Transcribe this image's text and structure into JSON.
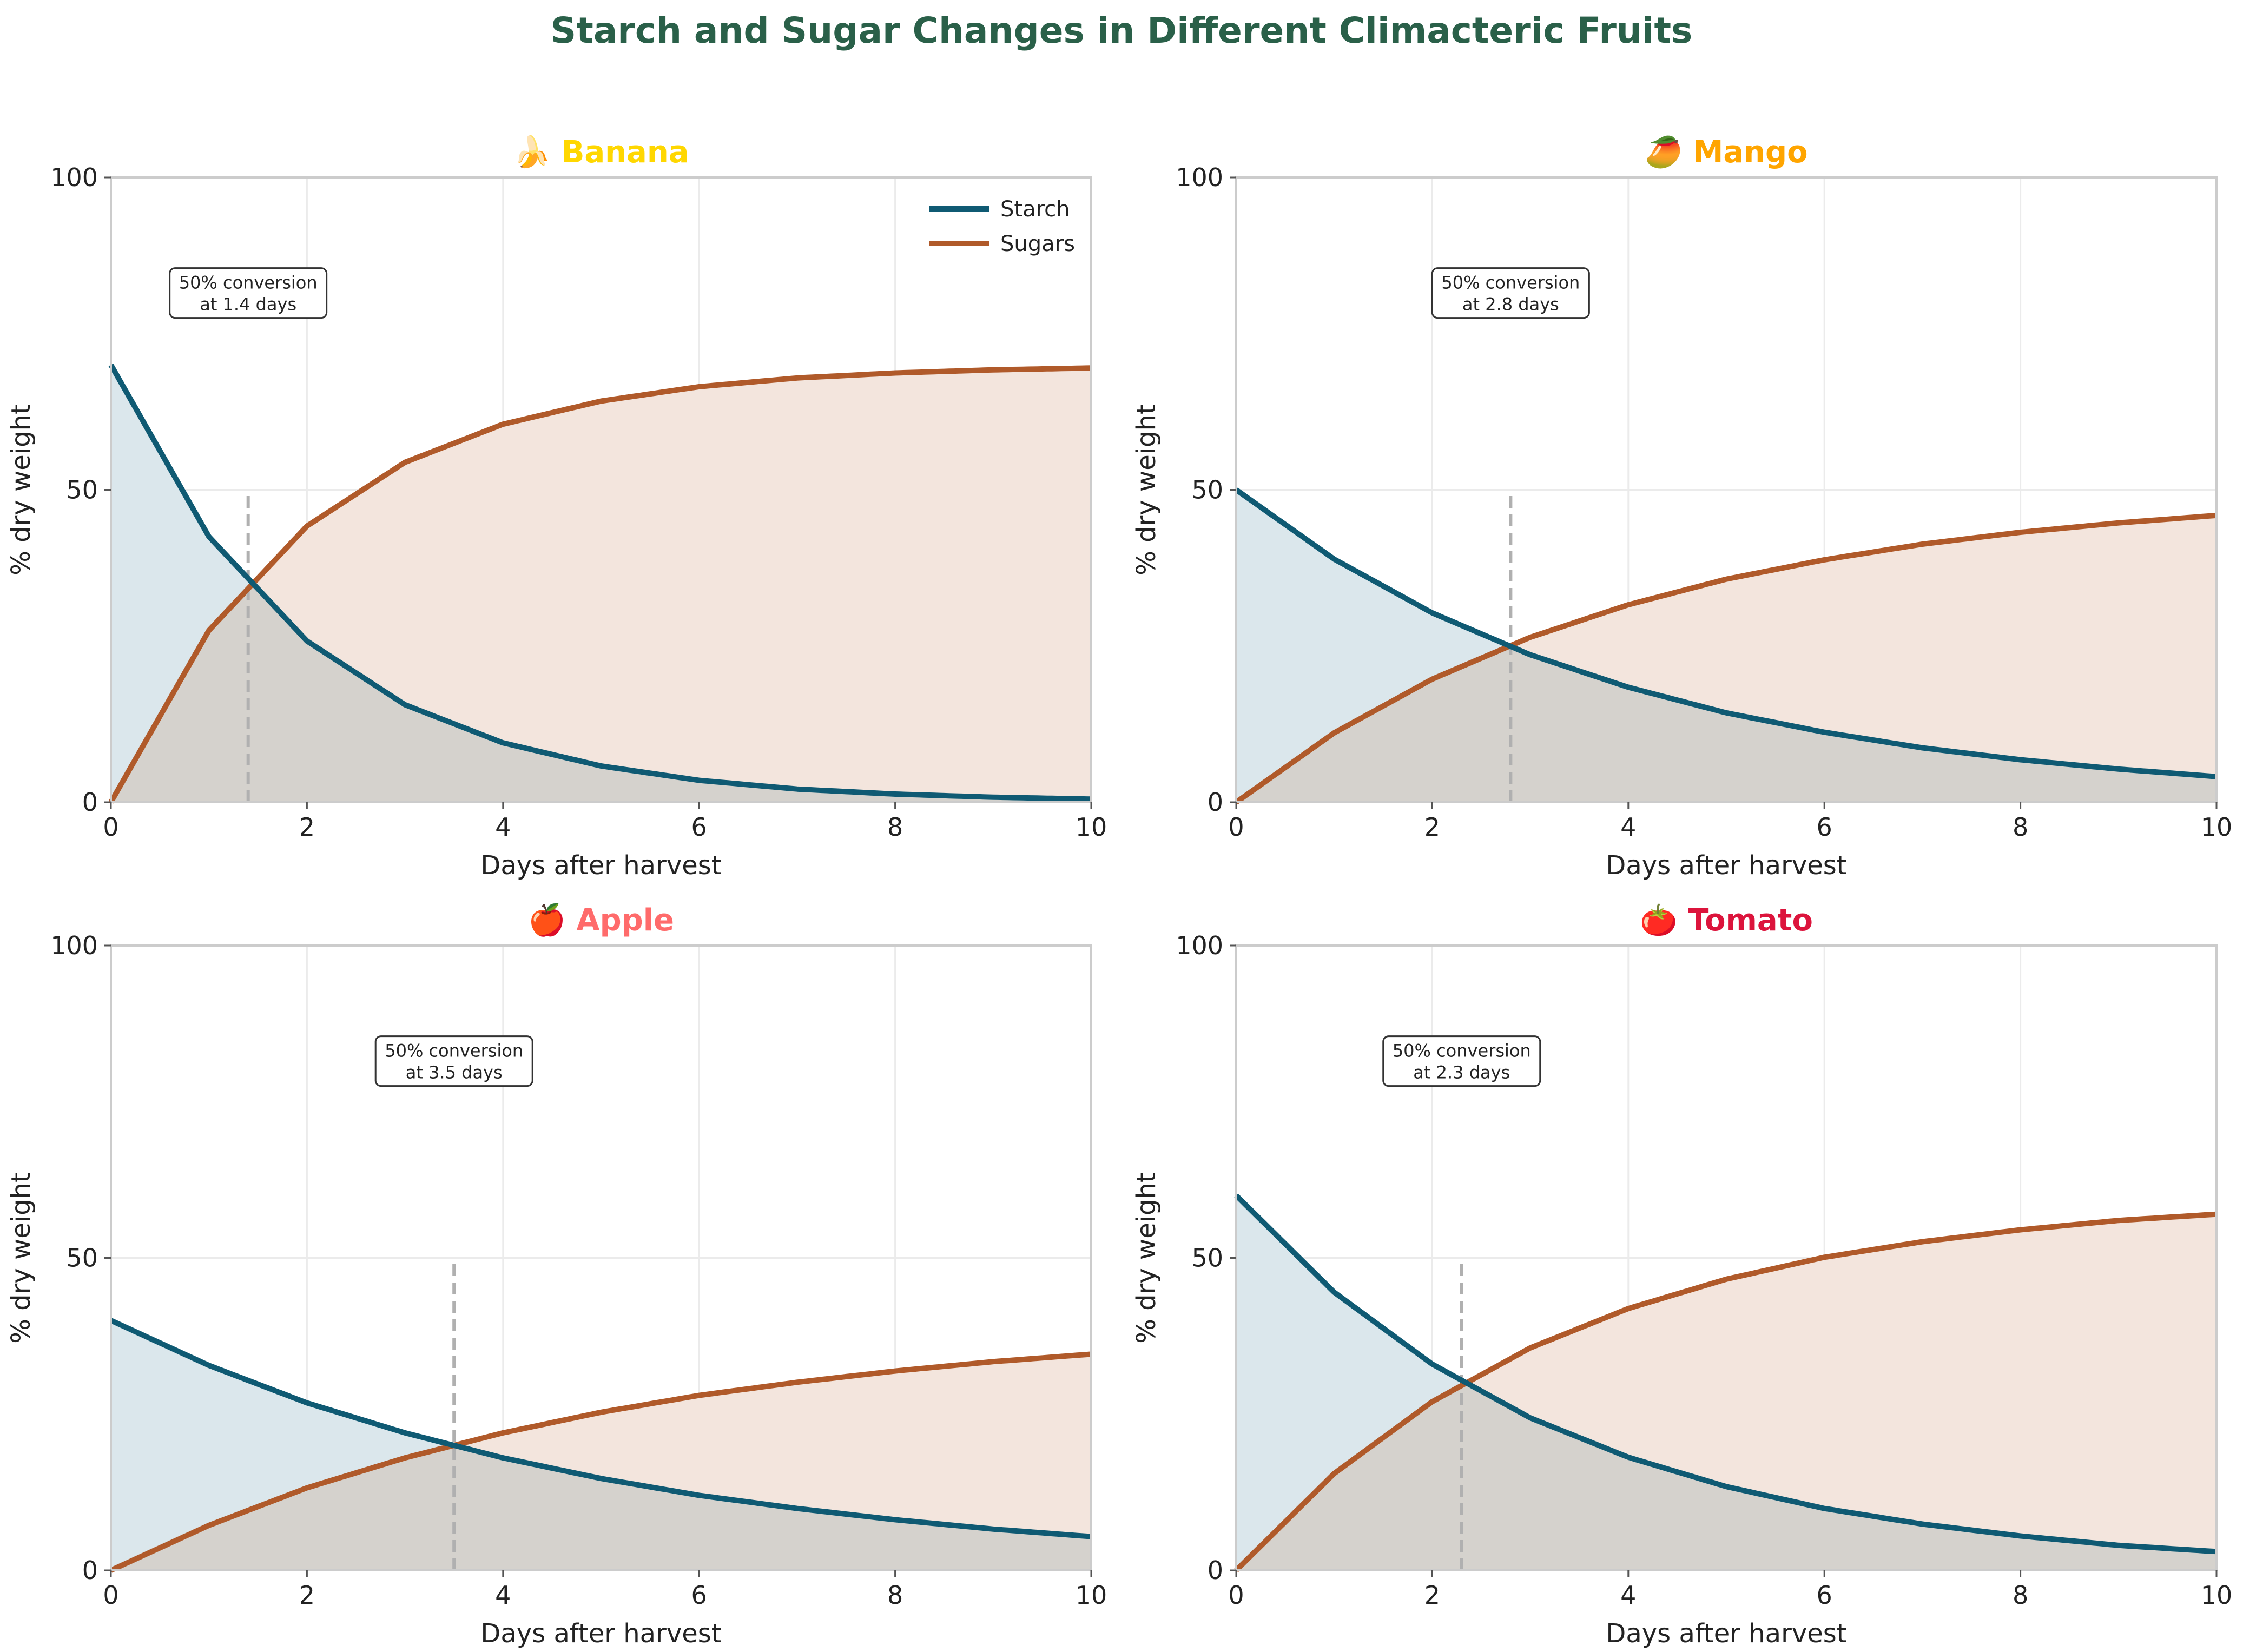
{
  "figure": {
    "title": "Starch and Sugar Changes in Different Climacteric Fruits",
    "title_color": "#2a6049"
  },
  "colors": {
    "starch": "#0f5a73",
    "sugars": "#b05a2a",
    "starch_fill": "#dbe7ec",
    "sugars_fill": "#f3e5dd",
    "overlap_fill": "#d5d2cd",
    "grid": "#ebebeb",
    "axis": "#cccccc",
    "marker": "#b0b0b0"
  },
  "chart_data": [
    {
      "type": "line",
      "title": "🍌 Banana",
      "title_color": "#ffd700",
      "xlabel": "Days after harvest",
      "ylabel": "% dry weight",
      "xlim": [
        0,
        10
      ],
      "ylim": [
        0,
        100
      ],
      "xticks": [
        "0",
        "2",
        "4",
        "6",
        "8",
        "10"
      ],
      "yticks": [
        "0",
        "50",
        "100"
      ],
      "grid": true,
      "legend": {
        "placement": "top-right",
        "entries": [
          "Starch",
          "Sugars"
        ]
      },
      "x": [
        0,
        1,
        2,
        3,
        4,
        5,
        6,
        7,
        8,
        9,
        10
      ],
      "series": [
        {
          "name": "Starch",
          "values": [
            70,
            42.5,
            25.8,
            15.6,
            9.5,
            5.8,
            3.5,
            2.1,
            1.3,
            0.8,
            0.5
          ]
        },
        {
          "name": "Sugars",
          "values": [
            0,
            27.5,
            44.2,
            54.4,
            60.5,
            64.2,
            66.5,
            67.9,
            68.7,
            69.2,
            69.5
          ]
        }
      ],
      "crossover_x": 1.4,
      "annotation": [
        "50% conversion",
        "at 1.4 days"
      ]
    },
    {
      "type": "line",
      "title": "🥭 Mango",
      "title_color": "#ffa500",
      "xlabel": "Days after harvest",
      "ylabel": "% dry weight",
      "xlim": [
        0,
        10
      ],
      "ylim": [
        0,
        100
      ],
      "xticks": [
        "0",
        "2",
        "4",
        "6",
        "8",
        "10"
      ],
      "yticks": [
        "0",
        "50",
        "100"
      ],
      "grid": true,
      "x": [
        0,
        1,
        2,
        3,
        4,
        5,
        6,
        7,
        8,
        9,
        10
      ],
      "series": [
        {
          "name": "Starch",
          "values": [
            50,
            38.9,
            30.3,
            23.6,
            18.4,
            14.3,
            11.2,
            8.7,
            6.8,
            5.3,
            4.1
          ]
        },
        {
          "name": "Sugars",
          "values": [
            0,
            11.1,
            19.7,
            26.4,
            31.6,
            35.7,
            38.8,
            41.3,
            43.2,
            44.7,
            45.9
          ]
        }
      ],
      "crossover_x": 2.8,
      "annotation": [
        "50% conversion",
        "at 2.8 days"
      ]
    },
    {
      "type": "line",
      "title": "🍎 Apple",
      "title_color": "#ff6b6b",
      "xlabel": "Days after harvest",
      "ylabel": "% dry weight",
      "xlim": [
        0,
        10
      ],
      "ylim": [
        0,
        100
      ],
      "xticks": [
        "0",
        "2",
        "4",
        "6",
        "8",
        "10"
      ],
      "yticks": [
        "0",
        "50",
        "100"
      ],
      "grid": true,
      "x": [
        0,
        1,
        2,
        3,
        4,
        5,
        6,
        7,
        8,
        9,
        10
      ],
      "series": [
        {
          "name": "Starch",
          "values": [
            40,
            32.8,
            26.8,
            22.0,
            18.0,
            14.7,
            12.0,
            9.9,
            8.1,
            6.6,
            5.4
          ]
        },
        {
          "name": "Sugars",
          "values": [
            0,
            7.2,
            13.2,
            18.0,
            22.0,
            25.3,
            28.0,
            30.1,
            31.9,
            33.4,
            34.6
          ]
        }
      ],
      "crossover_x": 3.5,
      "annotation": [
        "50% conversion",
        "at 3.5 days"
      ]
    },
    {
      "type": "line",
      "title": "🍅 Tomato",
      "title_color": "#dc143c",
      "xlabel": "Days after harvest",
      "ylabel": "% dry weight",
      "xlim": [
        0,
        10
      ],
      "ylim": [
        0,
        100
      ],
      "xticks": [
        "0",
        "2",
        "4",
        "6",
        "8",
        "10"
      ],
      "yticks": [
        "0",
        "50",
        "100"
      ],
      "grid": true,
      "x": [
        0,
        1,
        2,
        3,
        4,
        5,
        6,
        7,
        8,
        9,
        10
      ],
      "series": [
        {
          "name": "Starch",
          "values": [
            60,
            44.5,
            33.0,
            24.4,
            18.1,
            13.4,
            9.9,
            7.4,
            5.5,
            4.0,
            3.0
          ]
        },
        {
          "name": "Sugars",
          "values": [
            0,
            15.5,
            27.0,
            35.6,
            41.9,
            46.6,
            50.1,
            52.6,
            54.5,
            56.0,
            57.0
          ]
        }
      ],
      "crossover_x": 2.3,
      "annotation": [
        "50% conversion",
        "at 2.3 days"
      ]
    }
  ]
}
